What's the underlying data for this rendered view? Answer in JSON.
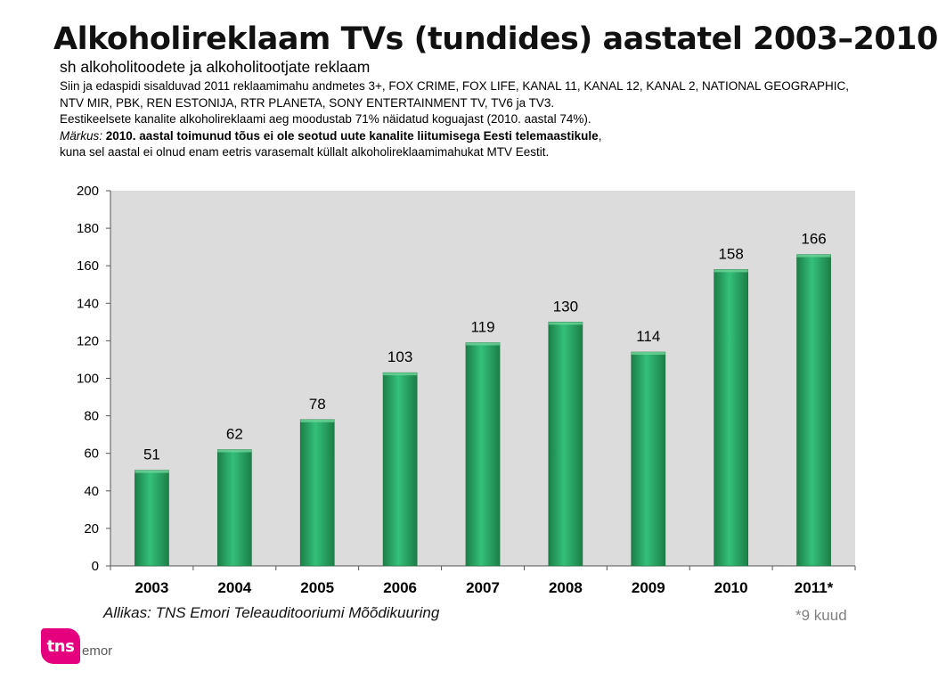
{
  "header": {
    "title": "Alkoholireklaam TVs (tundides) aastatel 2003–2010",
    "subtitle": "sh alkoholitoodete ja alkoholitootjate reklaam"
  },
  "notes": {
    "line1": "Siin ja edaspidi sisalduvad 2011 reklaamimahu andmetes 3+, FOX CRIME, FOX LIFE, KANAL 11, KANAL 12, KANAL 2, NATIONAL GEOGRAPHIC, NTV MIR, PBK, REN ESTONIJA, RTR PLANETA, SONY ENTERTAINMENT TV, TV6 ja TV3.",
    "line2": "Eestikeelsete kanalite alkoholireklaami aeg moodustab 71% näidatud koguajast (2010. aastal 74%).",
    "remark_label": "Märkus:",
    "remark_bold": " 2010. aastal toimunud tõus ei ole seotud uute kanalite liitumisega Eesti telemaastikule",
    "remark_comma": ",",
    "remark_rest": "kuna sel aastal ei olnud enam eetris varasemalt küllalt alkoholireklaamimahukat MTV Eestit."
  },
  "chart_data": {
    "type": "bar",
    "categories": [
      "2003",
      "2004",
      "2005",
      "2006",
      "2007",
      "2008",
      "2009",
      "2010",
      "2011*"
    ],
    "values": [
      51,
      62,
      78,
      103,
      119,
      130,
      114,
      158,
      166
    ],
    "ylim": [
      0,
      200
    ],
    "yticks": [
      0,
      20,
      40,
      60,
      80,
      100,
      120,
      140,
      160,
      180,
      200
    ],
    "grid": false,
    "colors": {
      "bar": "#2aa864",
      "bar_light": "#34c07a",
      "bar_dark": "#1b7f47",
      "plot_bg": "#dcdcdc"
    }
  },
  "footer": {
    "source": "Allikas: TNS Emori Teleauditooriumi Mõõdikuuring",
    "footnote": "*9 kuud",
    "logo_mark": "tns",
    "logo_text": "emor"
  }
}
